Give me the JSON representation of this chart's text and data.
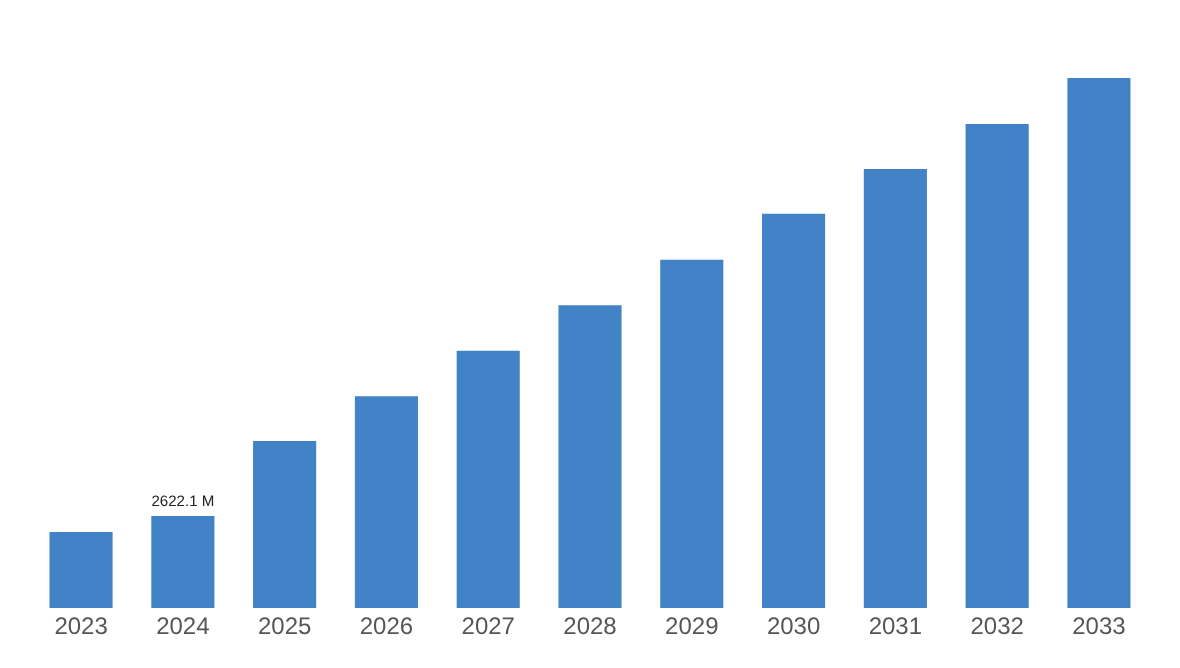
{
  "chart_data": {
    "type": "bar",
    "categories": [
      "2023",
      "2024",
      "2025",
      "2026",
      "2027",
      "2028",
      "2029",
      "2030",
      "2031",
      "2032",
      "2033"
    ],
    "values": [
      2165,
      2622.1,
      4762,
      6040,
      7339,
      8632,
      9931,
      11245,
      12523,
      13806,
      15120
    ],
    "value_labels": [
      null,
      "2622.1 M",
      null,
      null,
      null,
      null,
      null,
      null,
      null,
      null,
      null
    ],
    "color": "#4282c6",
    "legend": false
  }
}
